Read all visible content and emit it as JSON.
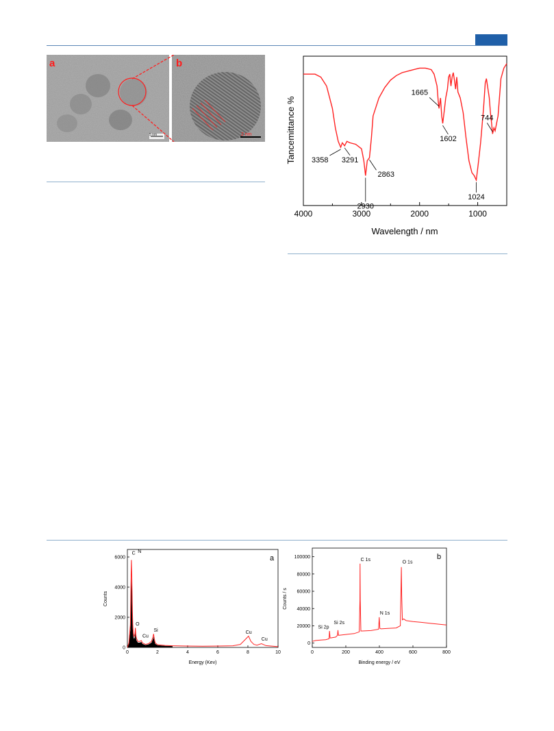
{
  "header": {
    "accent_color": "#1f5fa8"
  },
  "figure_tem": {
    "panel_a_label": "a",
    "panel_b_label": "b",
    "scale_a": "5 nm",
    "scale_b": "2 nm"
  },
  "chart_data": [
    {
      "type": "line",
      "panel": "ftir",
      "xlabel": "Wavelength / nm",
      "ylabel": "Tancemittance %",
      "xlim": [
        4000,
        500
      ],
      "xticks": [
        "4000",
        "3000",
        "2000",
        "1000"
      ],
      "line_color": "#ff2020",
      "series": [
        {
          "x": [
            4000,
            3800,
            3700,
            3600,
            3500,
            3450,
            3400,
            3358,
            3330,
            3291,
            3250,
            3200,
            3100,
            3000,
            2960,
            2930,
            2900,
            2863,
            2830,
            2800,
            2700,
            2600,
            2500,
            2400,
            2300,
            2200,
            2100,
            2000,
            1900,
            1800,
            1750,
            1700,
            1680,
            1665,
            1640,
            1620,
            1602,
            1580,
            1550,
            1520,
            1500,
            1480,
            1460,
            1440,
            1420,
            1400,
            1380,
            1360,
            1340,
            1300,
            1250,
            1200,
            1150,
            1100,
            1060,
            1024,
            990,
            950,
            900,
            870,
            850,
            800,
            780,
            760,
            744,
            720,
            700,
            650,
            600,
            550,
            500
          ],
          "y": [
            88,
            88,
            86,
            80,
            65,
            52,
            43,
            39,
            42,
            40,
            43,
            42,
            41,
            38,
            30,
            20,
            30,
            32,
            45,
            60,
            72,
            79,
            84,
            87,
            89,
            90,
            91,
            92,
            92,
            91,
            88,
            80,
            70,
            65,
            72,
            60,
            55,
            62,
            72,
            78,
            86,
            88,
            80,
            86,
            89,
            84,
            78,
            86,
            76,
            72,
            62,
            45,
            30,
            22,
            20,
            17,
            28,
            42,
            65,
            82,
            85,
            72,
            62,
            55,
            48,
            52,
            50,
            60,
            85,
            92,
            95
          ]
        }
      ],
      "annotations": [
        "3358",
        "3291",
        "2930",
        "2863",
        "1665",
        "1602",
        "1024",
        "744"
      ]
    },
    {
      "type": "area",
      "panel": "a",
      "panel_label": "a",
      "xlabel": "Energy (Kev)",
      "ylabel": "Counts",
      "xlim": [
        0,
        10
      ],
      "ylim": [
        0,
        6500
      ],
      "xticks": [
        "0",
        "2",
        "4",
        "6",
        "8",
        "10"
      ],
      "yticks": [
        "0",
        "2000",
        "4000",
        "6000"
      ],
      "line_color": "#ff2020",
      "series": [
        {
          "x": [
            0,
            0.1,
            0.2,
            0.25,
            0.27,
            0.3,
            0.33,
            0.36,
            0.4,
            0.45,
            0.5,
            0.53,
            0.56,
            0.6,
            0.7,
            0.8,
            0.93,
            1.0,
            1.2,
            1.4,
            1.6,
            1.7,
            1.74,
            1.78,
            1.85,
            2.0,
            2.5,
            3,
            4,
            5,
            6,
            7,
            7.5,
            7.8,
            8.04,
            8.2,
            8.4,
            8.6,
            8.9,
            9.2,
            10
          ],
          "y": [
            0,
            300,
            1500,
            5000,
            5800,
            4500,
            2500,
            1500,
            900,
            700,
            900,
            1300,
            900,
            600,
            400,
            400,
            450,
            300,
            200,
            250,
            400,
            700,
            900,
            600,
            300,
            180,
            130,
            110,
            90,
            80,
            90,
            110,
            200,
            500,
            750,
            400,
            200,
            150,
            250,
            120,
            50
          ]
        }
      ],
      "annotations": [
        "C",
        "N",
        "O",
        "Cu",
        "Si",
        "Cu",
        "Cu"
      ]
    },
    {
      "type": "line",
      "panel": "b",
      "panel_label": "b",
      "xlabel": "Binding energy / eV",
      "ylabel": "Counts / s",
      "xlim": [
        0,
        800
      ],
      "ylim": [
        -5000,
        110000
      ],
      "xticks": [
        "0",
        "200",
        "400",
        "600",
        "800"
      ],
      "yticks": [
        "0",
        "20000",
        "40000",
        "60000",
        "80000",
        "100000"
      ],
      "line_color": "#ff2020",
      "series": [
        {
          "x": [
            0,
            20,
            50,
            80,
            100,
            103,
            106,
            110,
            140,
            150,
            153,
            156,
            160,
            200,
            250,
            280,
            284,
            285,
            286,
            290,
            300,
            350,
            395,
            399,
            403,
            410,
            450,
            500,
            525,
            531,
            533,
            537,
            545,
            560,
            600,
            650,
            700,
            750,
            800
          ],
          "y": [
            2000,
            3000,
            3500,
            4000,
            5000,
            14000,
            6000,
            6000,
            7000,
            9000,
            15000,
            9000,
            9000,
            10000,
            11000,
            13000,
            50000,
            92000,
            50000,
            14000,
            14000,
            14500,
            16000,
            30000,
            17000,
            16500,
            17000,
            17500,
            20000,
            88000,
            55000,
            27000,
            28000,
            26000,
            25000,
            24000,
            23000,
            22000,
            21000
          ]
        }
      ],
      "annotations": [
        "C 1s",
        "O 1s",
        "N 1s",
        "Si 2s",
        "Si 2p"
      ]
    }
  ]
}
